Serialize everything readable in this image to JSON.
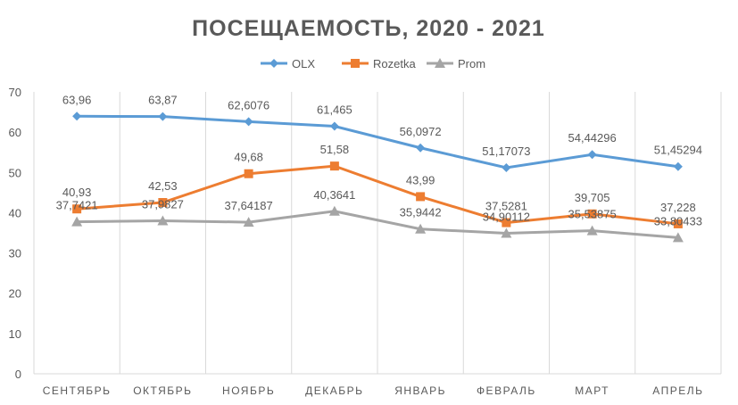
{
  "chart_data": {
    "type": "line",
    "title": "ПОСЕЩАЕМОСТЬ, 2020 - 2021",
    "categories": [
      "СЕНТЯБРЬ",
      "ОКТЯБРЬ",
      "НОЯБРЬ",
      "ДЕКАБРЬ",
      "ЯНВАРЬ",
      "ФЕВРАЛЬ",
      "МАРТ",
      "АПРЕЛЬ"
    ],
    "ylim": [
      0,
      70
    ],
    "yticks": [
      "0",
      "10",
      "20",
      "30",
      "40",
      "50",
      "60",
      "70"
    ],
    "grid": "vertical",
    "legend": "top",
    "series": [
      {
        "name": "OLX",
        "color": "#5B9BD5",
        "marker": "diamond",
        "values": [
          63.96,
          63.87,
          62.6076,
          61.465,
          56.0972,
          51.17073,
          54.44296,
          51.45294
        ],
        "labels": [
          "63,96",
          "63,87",
          "62,6076",
          "61,465",
          "56,0972",
          "51,17073",
          "54,44296",
          "51,45294"
        ]
      },
      {
        "name": "Rozetka",
        "color": "#ED7D31",
        "marker": "square",
        "values": [
          40.93,
          42.53,
          49.68,
          51.58,
          43.99,
          37.5281,
          39.705,
          37.228
        ],
        "labels": [
          "40,93",
          "42,53",
          "49,68",
          "51,58",
          "43,99",
          "37,5281",
          "39,705",
          "37,228"
        ]
      },
      {
        "name": "Prom",
        "color": "#A5A5A5",
        "marker": "triangle",
        "values": [
          37.7421,
          37.9827,
          37.64187,
          40.3641,
          35.9442,
          34.90112,
          35.53875,
          33.80433
        ],
        "labels": [
          "37,7421",
          "37,9827",
          "37,64187",
          "40,3641",
          "35,9442",
          "34,90112",
          "35,53875",
          "33,80433"
        ]
      }
    ]
  }
}
